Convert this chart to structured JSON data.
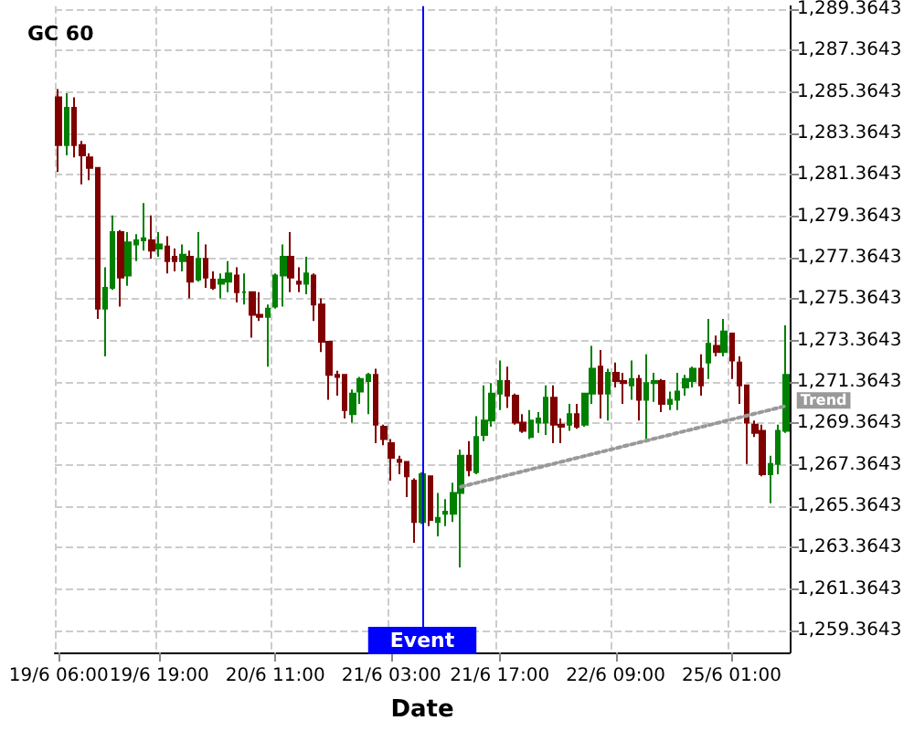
{
  "chart_data": {
    "type": "candlestick",
    "title": "GC 60",
    "xlabel": "Date",
    "categories": [
      "19/6 06:00",
      null,
      null,
      null,
      null,
      null,
      null,
      null,
      null,
      null,
      null,
      null,
      null,
      "19/6 19:00",
      null,
      null,
      null,
      null,
      null,
      null,
      null,
      null,
      null,
      null,
      null,
      null,
      null,
      null,
      "20/6 11:00",
      null,
      null,
      null,
      null,
      null,
      null,
      null,
      null,
      null,
      null,
      null,
      null,
      null,
      null,
      "21/6 03:00",
      null,
      null,
      null,
      null,
      null,
      null,
      null,
      null,
      null,
      null,
      null,
      null,
      null,
      "21/6 17:00",
      null,
      null,
      null,
      null,
      null,
      null,
      null,
      null,
      null,
      null,
      null,
      null,
      null,
      null,
      "22/6 09:00",
      null,
      null,
      null,
      null,
      null,
      null,
      null,
      null,
      null,
      null,
      null,
      null,
      null,
      null,
      "25/6 01:00",
      null,
      null,
      null,
      null,
      null,
      null,
      null
    ],
    "ohlc": [
      [
        1285.1,
        1285.5,
        1281.5,
        1282.8
      ],
      [
        1282.8,
        1285.3,
        1282.3,
        1284.6
      ],
      [
        1284.6,
        1285.1,
        1282.2,
        1282.8
      ],
      [
        1282.8,
        1283.0,
        1280.9,
        1282.3
      ],
      [
        1282.2,
        1282.4,
        1281.1,
        1281.7
      ],
      [
        1281.7,
        1281.7,
        1274.4,
        1274.9
      ],
      [
        1274.9,
        1276.9,
        1272.6,
        1275.9
      ],
      [
        1275.9,
        1279.4,
        1275.8,
        1278.6
      ],
      [
        1278.6,
        1278.7,
        1275.0,
        1276.4
      ],
      [
        1276.5,
        1278.6,
        1276.0,
        1278.1
      ],
      [
        1278.0,
        1278.5,
        1277.2,
        1278.2
      ],
      [
        1278.2,
        1280.0,
        1277.7,
        1278.3
      ],
      [
        1278.2,
        1279.4,
        1277.3,
        1277.7
      ],
      [
        1277.8,
        1278.6,
        1277.4,
        1278.0
      ],
      [
        1277.9,
        1278.4,
        1276.6,
        1277.2
      ],
      [
        1277.4,
        1277.8,
        1276.7,
        1277.2
      ],
      [
        1277.2,
        1278.0,
        1276.7,
        1277.5
      ],
      [
        1277.4,
        1277.7,
        1275.4,
        1276.2
      ],
      [
        1276.3,
        1278.6,
        1276.2,
        1277.3
      ],
      [
        1277.3,
        1278.0,
        1275.9,
        1276.4
      ],
      [
        1276.3,
        1276.7,
        1275.8,
        1275.9
      ],
      [
        1276.1,
        1276.6,
        1275.4,
        1276.3
      ],
      [
        1276.2,
        1277.2,
        1275.7,
        1276.6
      ],
      [
        1276.5,
        1276.9,
        1275.2,
        1275.7
      ],
      [
        1275.7,
        1276.6,
        1275.1,
        1275.7
      ],
      [
        1275.7,
        1275.7,
        1273.5,
        1274.6
      ],
      [
        1274.6,
        1275.7,
        1274.3,
        1274.5
      ],
      [
        1274.5,
        1275.1,
        1272.1,
        1274.9
      ],
      [
        1275.0,
        1276.6,
        1274.9,
        1276.5
      ],
      [
        1276.5,
        1278.0,
        1275.0,
        1277.4
      ],
      [
        1277.4,
        1278.6,
        1275.7,
        1276.4
      ],
      [
        1276.2,
        1276.9,
        1275.7,
        1276.1
      ],
      [
        1276.1,
        1277.4,
        1275.6,
        1276.6
      ],
      [
        1276.5,
        1276.6,
        1274.3,
        1275.1
      ],
      [
        1275.1,
        1275.4,
        1272.8,
        1273.3
      ],
      [
        1273.3,
        1273.3,
        1270.5,
        1271.7
      ],
      [
        1271.7,
        1271.9,
        1270.7,
        1271.6
      ],
      [
        1271.7,
        1271.7,
        1269.6,
        1270.0
      ],
      [
        1269.8,
        1271.0,
        1269.4,
        1270.8
      ],
      [
        1270.9,
        1271.6,
        1270.3,
        1271.5
      ],
      [
        1271.4,
        1271.8,
        1269.8,
        1271.7
      ],
      [
        1271.7,
        1272.0,
        1268.4,
        1269.3
      ],
      [
        1269.2,
        1269.3,
        1268.3,
        1268.6
      ],
      [
        1268.4,
        1268.6,
        1266.6,
        1267.7
      ],
      [
        1267.6,
        1267.8,
        1266.9,
        1267.5
      ],
      [
        1267.5,
        1267.5,
        1265.8,
        1266.8
      ],
      [
        1266.6,
        1266.7,
        1263.6,
        1264.6
      ],
      [
        1264.6,
        1267.0,
        1264.5,
        1266.9
      ],
      [
        1266.8,
        1266.8,
        1264.4,
        1264.7
      ],
      [
        1264.6,
        1266.0,
        1263.9,
        1264.8
      ],
      [
        1265.0,
        1265.7,
        1264.4,
        1265.1
      ],
      [
        1265.0,
        1266.5,
        1264.6,
        1266.0
      ],
      [
        1266.0,
        1268.1,
        1262.4,
        1267.8
      ],
      [
        1267.8,
        1268.5,
        1266.8,
        1267.1
      ],
      [
        1267.0,
        1269.7,
        1266.9,
        1268.7
      ],
      [
        1268.8,
        1271.2,
        1268.5,
        1269.5
      ],
      [
        1269.5,
        1271.3,
        1269.2,
        1270.8
      ],
      [
        1270.8,
        1272.4,
        1270.0,
        1271.4
      ],
      [
        1271.4,
        1272.1,
        1270.1,
        1270.7
      ],
      [
        1270.7,
        1270.8,
        1269.3,
        1269.4
      ],
      [
        1269.4,
        1269.8,
        1268.9,
        1269.0
      ],
      [
        1268.7,
        1270.0,
        1268.6,
        1269.5
      ],
      [
        1269.4,
        1269.9,
        1268.9,
        1269.6
      ],
      [
        1269.4,
        1271.2,
        1268.8,
        1270.6
      ],
      [
        1270.6,
        1271.2,
        1268.4,
        1269.3
      ],
      [
        1269.3,
        1269.6,
        1268.4,
        1269.2
      ],
      [
        1269.3,
        1270.3,
        1269.0,
        1269.8
      ],
      [
        1269.8,
        1270.3,
        1269.1,
        1269.2
      ],
      [
        1269.3,
        1270.8,
        1269.2,
        1270.8
      ],
      [
        1270.8,
        1273.1,
        1270.3,
        1272.0
      ],
      [
        1272.1,
        1272.9,
        1269.6,
        1270.8
      ],
      [
        1270.8,
        1272.0,
        1269.5,
        1271.8
      ],
      [
        1271.8,
        1272.3,
        1271.1,
        1271.4
      ],
      [
        1271.4,
        1271.8,
        1270.3,
        1271.3
      ],
      [
        1271.2,
        1272.4,
        1270.5,
        1271.5
      ],
      [
        1271.5,
        1271.7,
        1269.5,
        1270.5
      ],
      [
        1270.5,
        1272.7,
        1268.6,
        1271.3
      ],
      [
        1271.3,
        1271.8,
        1270.4,
        1271.4
      ],
      [
        1271.4,
        1271.5,
        1269.9,
        1270.3
      ],
      [
        1270.3,
        1270.9,
        1270.0,
        1270.5
      ],
      [
        1270.5,
        1271.8,
        1270.0,
        1270.9
      ],
      [
        1271.1,
        1271.7,
        1270.7,
        1271.5
      ],
      [
        1271.4,
        1272.1,
        1271.1,
        1272.0
      ],
      [
        1272.0,
        1272.7,
        1270.7,
        1271.2
      ],
      [
        1272.3,
        1274.4,
        1271.5,
        1273.2
      ],
      [
        1273.1,
        1273.6,
        1272.6,
        1272.8
      ],
      [
        1272.8,
        1274.4,
        1272.6,
        1273.8
      ],
      [
        1273.7,
        1273.7,
        1271.5,
        1272.4
      ],
      [
        1272.3,
        1272.6,
        1270.3,
        1271.2
      ],
      [
        1271.2,
        1271.2,
        1267.4,
        1269.4
      ],
      [
        1269.3,
        1269.5,
        1268.7,
        1268.9
      ],
      [
        1269.0,
        1269.3,
        1266.8,
        1266.9
      ],
      [
        1266.9,
        1267.8,
        1265.5,
        1267.4
      ],
      [
        1267.4,
        1269.3,
        1266.9,
        1269.0
      ],
      [
        1269.0,
        1274.1,
        1268.9,
        1271.7
      ]
    ],
    "colors": [
      "#800000",
      "#008000",
      "#800000",
      "#800000",
      "#800000",
      "#800000",
      "#008000",
      "#008000",
      "#800000",
      "#008000",
      "#008000",
      "#008000",
      "#800000",
      "#008000",
      "#800000",
      "#800000",
      "#008000",
      "#800000",
      "#008000",
      "#800000",
      "#800000",
      "#008000",
      "#008000",
      "#800000",
      "#008000",
      "#800000",
      "#800000",
      "#008000",
      "#008000",
      "#008000",
      "#800000",
      "#800000",
      "#008000",
      "#800000",
      "#800000",
      "#800000",
      "#800000",
      "#800000",
      "#008000",
      "#008000",
      "#008000",
      "#800000",
      "#800000",
      "#800000",
      "#800000",
      "#800000",
      "#800000",
      "#008000",
      "#800000",
      "#008000",
      "#008000",
      "#008000",
      "#008000",
      "#800000",
      "#008000",
      "#008000",
      "#008000",
      "#008000",
      "#800000",
      "#800000",
      "#800000",
      "#008000",
      "#008000",
      "#008000",
      "#800000",
      "#800000",
      "#008000",
      "#800000",
      "#008000",
      "#008000",
      "#800000",
      "#008000",
      "#800000",
      "#800000",
      "#008000",
      "#800000",
      "#008000",
      "#008000",
      "#800000",
      "#008000",
      "#008000",
      "#008000",
      "#008000",
      "#800000",
      "#008000",
      "#800000",
      "#008000",
      "#800000",
      "#800000",
      "#800000",
      "#800000",
      "#800000",
      "#008000",
      "#008000",
      "#008000"
    ],
    "series": [
      {
        "type": "line",
        "name": "Trend",
        "color": "#999999",
        "line_style": "dotted",
        "marker": "none",
        "values": [
          null,
          null,
          null,
          null,
          null,
          null,
          null,
          null,
          null,
          null,
          null,
          null,
          null,
          null,
          null,
          null,
          null,
          null,
          null,
          null,
          null,
          null,
          null,
          null,
          null,
          null,
          null,
          null,
          null,
          null,
          null,
          null,
          null,
          null,
          null,
          null,
          null,
          null,
          null,
          null,
          null,
          null,
          null,
          null,
          null,
          null,
          null,
          null,
          null,
          null,
          null,
          null,
          1266.3,
          null,
          null,
          null,
          null,
          null,
          null,
          null,
          null,
          null,
          null,
          null,
          null,
          null,
          null,
          null,
          null,
          null,
          null,
          null,
          null,
          null,
          null,
          null,
          null,
          null,
          null,
          null,
          null,
          null,
          null,
          null,
          null,
          null,
          null,
          null,
          null,
          null,
          null,
          null,
          null,
          null,
          1270.2
        ]
      }
    ],
    "ylim": [
      1258.3,
      1289.5
    ],
    "yticks": [
      {
        "value": 1259.3643,
        "label": "1,259.3643"
      },
      {
        "value": 1261.3643,
        "label": "1,261.3643"
      },
      {
        "value": 1263.3643,
        "label": "1,263.3643"
      },
      {
        "value": 1265.3643,
        "label": "1,265.3643"
      },
      {
        "value": 1267.3643,
        "label": "1,267.3643"
      },
      {
        "value": 1269.3643,
        "label": "1,269.3643"
      },
      {
        "value": 1271.3643,
        "label": "1,271.3643"
      },
      {
        "value": 1273.3643,
        "label": "1,273.3643"
      },
      {
        "value": 1275.3643,
        "label": "1,275.3643"
      },
      {
        "value": 1277.3643,
        "label": "1,277.3643"
      },
      {
        "value": 1279.3643,
        "label": "1,279.3643"
      },
      {
        "value": 1281.3643,
        "label": "1,281.3643"
      },
      {
        "value": 1283.3643,
        "label": "1,283.3643"
      },
      {
        "value": 1285.3643,
        "label": "1,285.3643"
      },
      {
        "value": 1287.3643,
        "label": "1,287.3643"
      },
      {
        "value": 1289.3643,
        "label": "1,289.3643"
      }
    ],
    "annotations": [
      "Event"
    ],
    "grid": true
  }
}
